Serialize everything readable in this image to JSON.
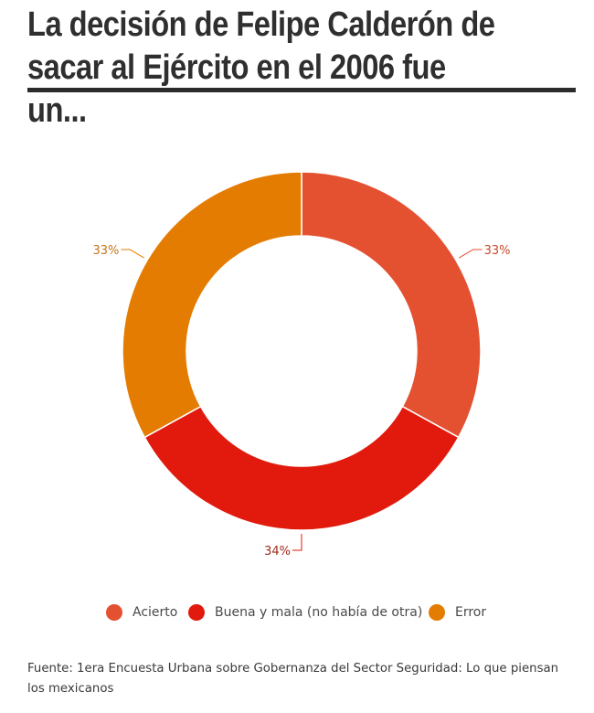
{
  "title": "La decisión de Felipe Calderón de sacar al Ejército en el 2006 fue un...",
  "source": "Fuente:  1era Encuesta Urbana sobre Gobernanza del Sector Seguridad: Lo que piensan los mexicanos",
  "chart_data": {
    "type": "pie",
    "donut": true,
    "title": "",
    "categories": [
      "Acierto",
      "Buena y mala (no había de otra)",
      "Error"
    ],
    "values": [
      33,
      34,
      33
    ],
    "data_labels": [
      "33%",
      "34%",
      "33%"
    ],
    "colors": [
      "#e45131",
      "#e11a0d",
      "#e47c02"
    ],
    "legend_position": "bottom"
  }
}
